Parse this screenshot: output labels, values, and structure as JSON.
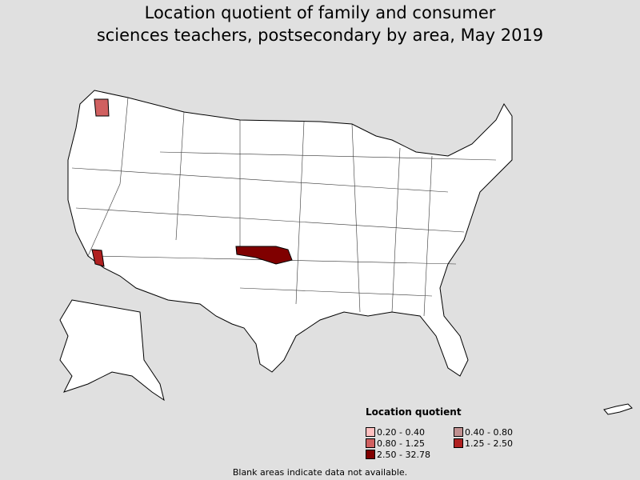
{
  "title_line1": "Location quotient of family and consumer",
  "title_line2": "sciences teachers, postsecondary by area, May 2019",
  "legend": {
    "title": "Location quotient",
    "items": [
      {
        "label": "0.20 - 0.40",
        "color": "#ffc0c0"
      },
      {
        "label": "0.40 - 0.80",
        "color": "#c09090"
      },
      {
        "label": "0.80 - 1.25",
        "color": "#d06060"
      },
      {
        "label": "1.25 - 2.50",
        "color": "#b02020"
      },
      {
        "label": "2.50 - 32.78",
        "color": "#800000"
      }
    ]
  },
  "note": "Blank areas indicate data not available."
}
